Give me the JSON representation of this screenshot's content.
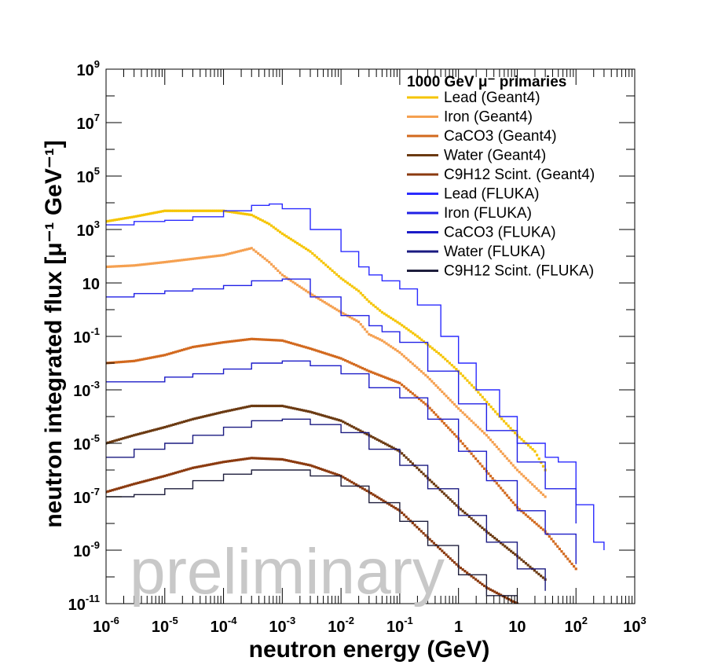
{
  "chart_data": {
    "type": "line",
    "title": "",
    "xlabel": "neutron energy (GeV)",
    "ylabel": "neutron integrated flux [μ⁻¹ GeV⁻¹]",
    "xscale": "log",
    "yscale": "log",
    "xlim": [
      1e-06,
      1000
    ],
    "ylim": [
      1e-11,
      1000000000.0
    ],
    "x_ticks": [
      {
        "v": 1e-06,
        "base": "10",
        "exp": "-6"
      },
      {
        "v": 1e-05,
        "base": "10",
        "exp": "-5"
      },
      {
        "v": 0.0001,
        "base": "10",
        "exp": "-4"
      },
      {
        "v": 0.001,
        "base": "10",
        "exp": "-3"
      },
      {
        "v": 0.01,
        "base": "10",
        "exp": "-2"
      },
      {
        "v": 0.1,
        "base": "10",
        "exp": "-1"
      },
      {
        "v": 1,
        "base": "1",
        "exp": ""
      },
      {
        "v": 10,
        "base": "10",
        "exp": ""
      },
      {
        "v": 100,
        "base": "10",
        "exp": "2"
      },
      {
        "v": 1000,
        "base": "10",
        "exp": "3"
      }
    ],
    "y_ticks": [
      {
        "v": 1000000000.0,
        "base": "10",
        "exp": "9"
      },
      {
        "v": 10000000.0,
        "base": "10",
        "exp": "7"
      },
      {
        "v": 100000.0,
        "base": "10",
        "exp": "5"
      },
      {
        "v": 1000.0,
        "base": "10",
        "exp": "3"
      },
      {
        "v": 10,
        "base": "10",
        "exp": ""
      },
      {
        "v": 0.1,
        "base": "10",
        "exp": "-1"
      },
      {
        "v": 0.001,
        "base": "10",
        "exp": "-3"
      },
      {
        "v": 1e-05,
        "base": "10",
        "exp": "-5"
      },
      {
        "v": 1e-07,
        "base": "10",
        "exp": "-7"
      },
      {
        "v": 1e-09,
        "base": "10",
        "exp": "-9"
      },
      {
        "v": 1e-11,
        "base": "10",
        "exp": "-11"
      }
    ],
    "legend_title": "1000 GeV  μ⁻ primaries",
    "legend_position": "top-right",
    "watermark": "preliminary",
    "series": [
      {
        "name": "Lead (Geant4)",
        "color": "#f5c400",
        "style": "markers",
        "x": [
          1e-06,
          3e-06,
          1e-05,
          3e-05,
          0.0001,
          0.0003,
          0.0006,
          0.001,
          0.003,
          0.006,
          0.01,
          0.02,
          0.03,
          0.05,
          0.1,
          0.2,
          0.5,
          1,
          2,
          5,
          10,
          20,
          30
        ],
        "y": [
          2000,
          3000,
          5000,
          5000,
          5000,
          3500,
          1600,
          700,
          150,
          40,
          15,
          5,
          2,
          0.8,
          0.3,
          0.1,
          0.02,
          0.005,
          0.001,
          0.0001,
          2e-05,
          5e-06,
          1e-06
        ]
      },
      {
        "name": "Iron (Geant4)",
        "color": "#f5a050",
        "style": "markers",
        "x": [
          1e-06,
          3e-06,
          1e-05,
          3e-05,
          0.0001,
          0.0003,
          0.0006,
          0.001,
          0.003,
          0.01,
          0.02,
          0.03,
          0.05,
          0.1,
          0.3,
          1,
          3,
          10,
          30
        ],
        "y": [
          40,
          45,
          60,
          80,
          110,
          200,
          60,
          20,
          4,
          0.8,
          0.35,
          0.12,
          0.07,
          0.025,
          0.003,
          0.0002,
          2e-05,
          1e-06,
          1e-07
        ]
      },
      {
        "name": "CaCO3 (Geant4)",
        "color": "#d2691e",
        "style": "markers",
        "x": [
          1e-06,
          3e-06,
          1e-05,
          3e-05,
          0.0001,
          0.0003,
          0.001,
          0.003,
          0.01,
          0.03,
          0.1,
          0.3,
          1,
          3,
          10,
          30,
          100
        ],
        "y": [
          0.01,
          0.012,
          0.02,
          0.04,
          0.06,
          0.08,
          0.07,
          0.035,
          0.015,
          0.005,
          0.0018,
          0.00025,
          1.5e-05,
          9e-07,
          4e-08,
          5e-09,
          2e-10
        ]
      },
      {
        "name": "Water (Geant4)",
        "color": "#6b3a12",
        "style": "markers",
        "x": [
          1e-06,
          3e-06,
          1e-05,
          3e-05,
          0.0001,
          0.0003,
          0.001,
          0.003,
          0.01,
          0.03,
          0.1,
          0.3,
          1,
          3,
          10,
          30
        ],
        "y": [
          1e-05,
          2e-05,
          4e-05,
          8e-05,
          0.00015,
          0.00025,
          0.00025,
          0.00015,
          7e-05,
          2e-05,
          5e-06,
          5e-07,
          4e-08,
          5e-09,
          6e-10,
          8e-11
        ]
      },
      {
        "name": "C9H12 Scint. (Geant4)",
        "color": "#8b3a0f",
        "style": "markers",
        "x": [
          1e-06,
          3e-06,
          1e-05,
          3e-05,
          0.0001,
          0.0003,
          0.001,
          0.003,
          0.01,
          0.03,
          0.1,
          0.3,
          1,
          3,
          10
        ],
        "y": [
          1.5e-07,
          3e-07,
          6e-07,
          1.2e-06,
          2e-06,
          2.8e-06,
          2.5e-06,
          1.5e-06,
          6e-07,
          1.5e-07,
          3e-08,
          3e-09,
          2.5e-10,
          4e-11,
          1e-11
        ]
      },
      {
        "name": "Lead (FLUKA)",
        "color": "#2b2bff",
        "style": "step",
        "x": [
          1e-06,
          3e-06,
          1e-05,
          3e-05,
          0.0001,
          0.0003,
          0.0006,
          0.001,
          0.003,
          0.01,
          0.02,
          0.03,
          0.05,
          0.1,
          0.2,
          0.5,
          1,
          2,
          5,
          10,
          30,
          50,
          100,
          200,
          300
        ],
        "y": [
          1500,
          2000,
          2200,
          3000,
          5000,
          8000,
          9000,
          6000,
          1000,
          150,
          40,
          20,
          12,
          6,
          1.5,
          0.1,
          0.01,
          0.001,
          0.0001,
          1e-05,
          3e-06,
          2e-06,
          5e-08,
          2e-09,
          1e-09
        ]
      },
      {
        "name": "Iron (FLUKA)",
        "color": "#2020e6",
        "style": "step",
        "x": [
          1e-06,
          3e-06,
          1e-05,
          3e-05,
          0.0001,
          0.0003,
          0.001,
          0.003,
          0.01,
          0.03,
          0.05,
          0.1,
          0.3,
          1,
          3,
          10,
          30,
          100
        ],
        "y": [
          3,
          4,
          5,
          6,
          8,
          12,
          14,
          3,
          0.6,
          0.25,
          0.15,
          0.06,
          0.005,
          0.0003,
          3e-05,
          2e-06,
          2e-07,
          1e-08
        ]
      },
      {
        "name": "CaCO3 (FLUKA)",
        "color": "#1c1cc8",
        "style": "step",
        "x": [
          1e-06,
          3e-06,
          1e-05,
          3e-05,
          0.0001,
          0.0003,
          0.001,
          0.003,
          0.01,
          0.03,
          0.1,
          0.3,
          1,
          3,
          10,
          30,
          100
        ],
        "y": [
          0.002,
          0.002,
          0.003,
          0.004,
          0.006,
          0.01,
          0.012,
          0.008,
          0.004,
          0.0012,
          0.0005,
          8e-05,
          5e-06,
          4e-07,
          3e-08,
          4e-09,
          3e-10
        ]
      },
      {
        "name": "Water (FLUKA)",
        "color": "#1a1a80",
        "style": "step",
        "x": [
          1e-06,
          3e-06,
          1e-05,
          3e-05,
          0.0001,
          0.0003,
          0.001,
          0.003,
          0.01,
          0.03,
          0.1,
          0.3,
          1,
          3,
          10,
          30
        ],
        "y": [
          3e-06,
          6e-06,
          1e-05,
          2e-05,
          4e-05,
          7e-05,
          8e-05,
          5e-05,
          2.5e-05,
          6e-06,
          1.5e-06,
          2e-07,
          2e-08,
          2e-09,
          2e-10,
          3e-11
        ]
      },
      {
        "name": "C9H12 Scint. (FLUKA)",
        "color": "#1e1e3c",
        "style": "step",
        "x": [
          1e-06,
          3e-06,
          1e-05,
          3e-05,
          0.0001,
          0.0003,
          0.001,
          0.003,
          0.01,
          0.03,
          0.1,
          0.3,
          1,
          3,
          10
        ],
        "y": [
          1e-07,
          1.2e-07,
          2e-07,
          4e-07,
          7e-07,
          1e-06,
          1e-06,
          6e-07,
          2.5e-07,
          6e-08,
          1.2e-08,
          1.5e-09,
          1.2e-10,
          2e-11,
          1e-11
        ]
      }
    ]
  }
}
